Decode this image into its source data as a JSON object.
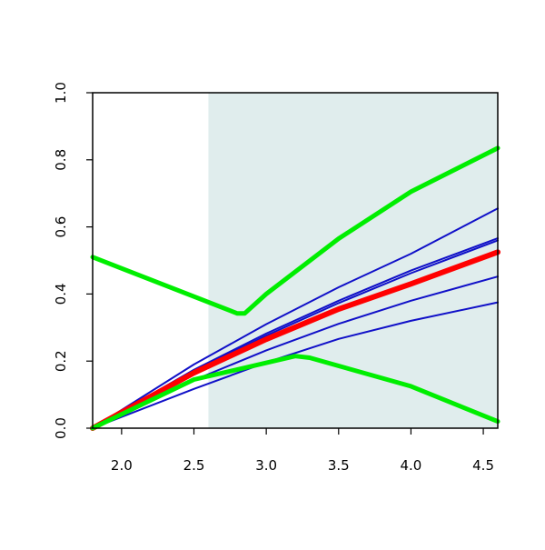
{
  "chart_data": {
    "type": "line",
    "title": "",
    "xlabel": "",
    "ylabel": "",
    "xlim": [
      1.8,
      4.6
    ],
    "ylim": [
      0.0,
      1.0
    ],
    "grid": false,
    "legend": "none",
    "x_ticks": [
      2.0,
      2.5,
      3.0,
      3.5,
      4.0,
      4.5
    ],
    "x_tick_labels": [
      "2.0",
      "2.5",
      "3.0",
      "3.5",
      "4.0",
      "4.5"
    ],
    "y_ticks": [
      0.0,
      0.2,
      0.4,
      0.6,
      0.8,
      1.0
    ],
    "y_tick_labels": [
      "0.0",
      "0.2",
      "0.4",
      "0.6",
      "0.8",
      "1.0"
    ],
    "shaded_region": {
      "x_from": 2.6,
      "x_to": 4.6,
      "color": "#e0eded"
    },
    "series": [
      {
        "color": "#1010c8",
        "width": 2,
        "x": [
          1.8,
          2.5,
          3.0,
          3.5,
          4.0,
          4.6
        ],
        "y": [
          0.0,
          0.174,
          0.282,
          0.38,
          0.47,
          0.566
        ]
      },
      {
        "color": "#1010c8",
        "width": 2,
        "x": [
          1.8,
          2.5,
          3.0,
          3.5,
          4.0,
          4.6
        ],
        "y": [
          0.0,
          0.17,
          0.276,
          0.373,
          0.462,
          0.56
        ]
      },
      {
        "color": "#1010c8",
        "width": 2,
        "x": [
          1.8,
          2.5,
          3.0,
          3.5,
          4.0,
          4.6
        ],
        "y": [
          0.0,
          0.19,
          0.31,
          0.42,
          0.52,
          0.655
        ]
      },
      {
        "color": "#1010c8",
        "width": 2,
        "x": [
          1.8,
          2.5,
          3.0,
          3.5,
          4.0,
          4.6
        ],
        "y": [
          0.0,
          0.143,
          0.232,
          0.311,
          0.38,
          0.452
        ]
      },
      {
        "color": "#1010c8",
        "width": 2,
        "x": [
          1.8,
          2.5,
          3.0,
          3.5,
          4.0,
          4.6
        ],
        "y": [
          0.0,
          0.117,
          0.196,
          0.266,
          0.32,
          0.375
        ]
      },
      {
        "color": "#ff0000",
        "width": 6,
        "x": [
          1.8,
          2.5,
          3.0,
          3.5,
          4.0,
          4.6
        ],
        "y": [
          0.0,
          0.165,
          0.265,
          0.355,
          0.43,
          0.525
        ]
      },
      {
        "color": "#00ee00",
        "width": 5,
        "x": [
          1.8,
          2.8,
          2.85,
          3.0,
          3.5,
          4.0,
          4.6
        ],
        "y": [
          0.51,
          0.342,
          0.342,
          0.4,
          0.565,
          0.705,
          0.835
        ]
      },
      {
        "color": "#00ee00",
        "width": 5,
        "x": [
          1.8,
          2.5,
          3.2,
          3.3,
          4.0,
          4.6
        ],
        "y": [
          0.0,
          0.145,
          0.215,
          0.21,
          0.125,
          0.02
        ]
      }
    ]
  }
}
